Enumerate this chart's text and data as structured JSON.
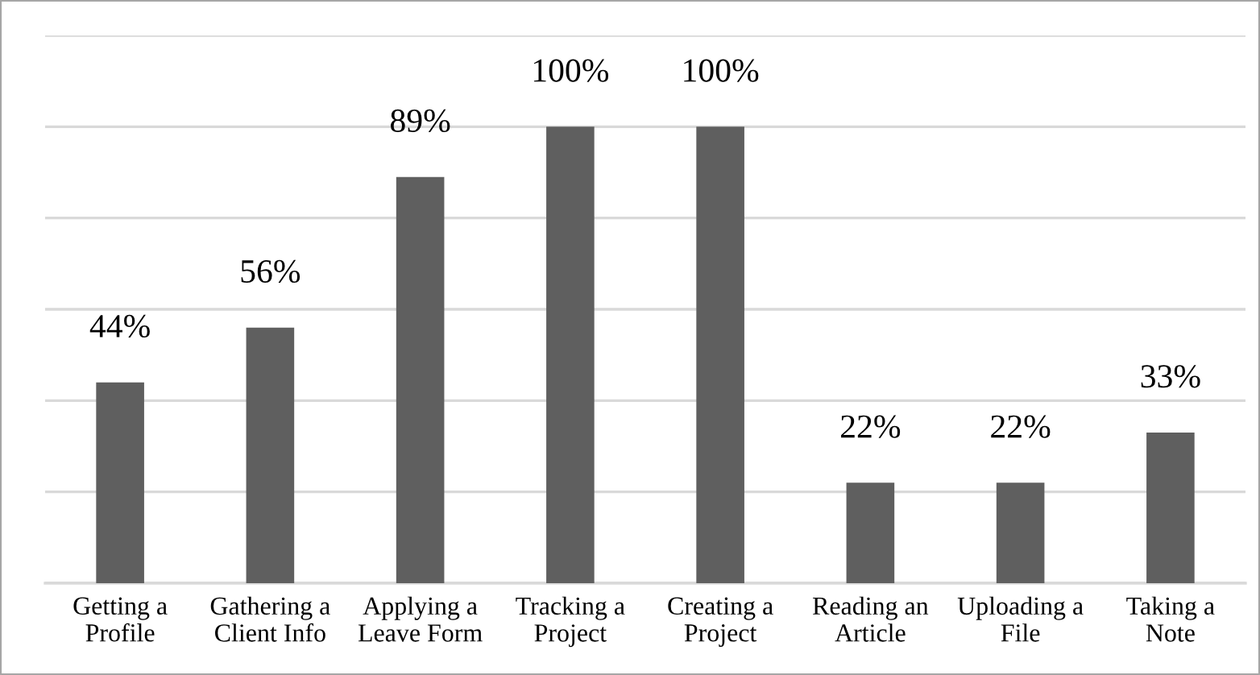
{
  "chart_data": {
    "type": "bar",
    "categories": [
      "Getting a\nProfile",
      "Gathering a\nClient Info",
      "Applying a\nLeave Form",
      "Tracking a\nProject",
      "Creating a\nProject",
      "Reading an\nArticle",
      "Uploading a\nFile",
      "Taking a\nNote"
    ],
    "values": [
      44,
      56,
      89,
      100,
      100,
      22,
      22,
      33
    ],
    "value_labels": [
      "44%",
      "56%",
      "89%",
      "100%",
      "100%",
      "22%",
      "22%",
      "33%"
    ],
    "color": "#5f5f5f",
    "ylim": [
      0,
      120
    ],
    "yticks": [
      {
        "value": 0,
        "label": null
      },
      {
        "value": 20,
        "label": null
      },
      {
        "value": 40,
        "label": null
      },
      {
        "value": 60,
        "label": null
      },
      {
        "value": 80,
        "label": null
      },
      {
        "value": 100,
        "label": null
      },
      {
        "value": 120,
        "label": null
      }
    ],
    "grid": "y",
    "tick_labels": "x"
  }
}
